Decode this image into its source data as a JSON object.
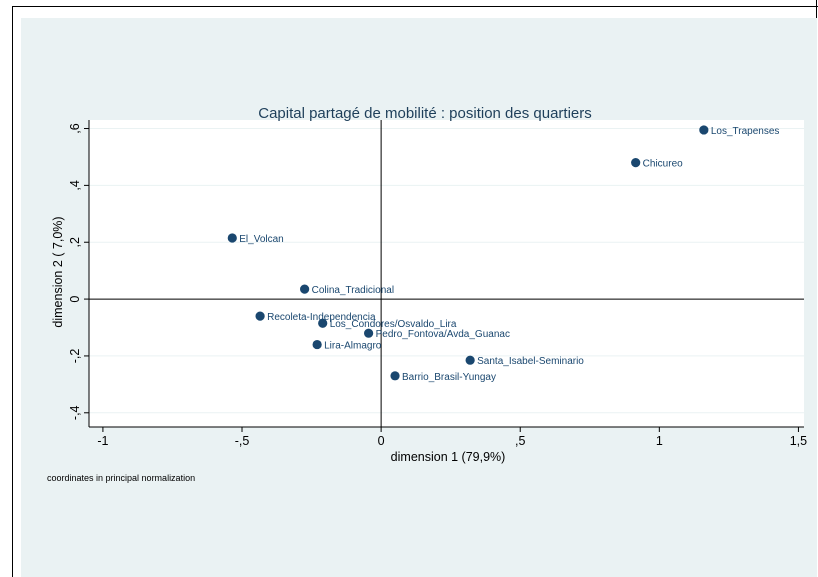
{
  "chart_data": {
    "type": "scatter",
    "title": "Capital partagé de mobilité : position des quartiers",
    "xlabel": "dimension 1 (79,9%)",
    "ylabel": "dimension 2 ( 7,0%)",
    "note": "coordinates in principal normalization",
    "xlim": [
      -1.05,
      1.52
    ],
    "ylim": [
      -0.45,
      0.63
    ],
    "x_ticks": [
      {
        "value": -1,
        "label": "-1"
      },
      {
        "value": -0.5,
        "label": "-,5"
      },
      {
        "value": 0,
        "label": "0"
      },
      {
        "value": 0.5,
        "label": ",5"
      },
      {
        "value": 1,
        "label": "1"
      },
      {
        "value": 1.5,
        "label": "1,5"
      }
    ],
    "y_ticks": [
      {
        "value": -0.4,
        "label": "-,4"
      },
      {
        "value": -0.2,
        "label": "-,2"
      },
      {
        "value": 0,
        "label": "0"
      },
      {
        "value": 0.2,
        "label": ",2"
      },
      {
        "value": 0.4,
        "label": ",4"
      },
      {
        "value": 0.6,
        "label": ",6"
      }
    ],
    "grid": true,
    "reference_lines": {
      "x": 0,
      "y": 0
    },
    "point_color": "#1a476f",
    "label_color": "#1a476f",
    "points": [
      {
        "label": "Los_Trapenses",
        "x": 1.16,
        "y": 0.595
      },
      {
        "label": "Chicureo",
        "x": 0.915,
        "y": 0.48
      },
      {
        "label": "El_Volcan",
        "x": -0.535,
        "y": 0.215
      },
      {
        "label": "Colina_Tradicional",
        "x": -0.275,
        "y": 0.035
      },
      {
        "label": "Recoleta-Independencia",
        "x": -0.435,
        "y": -0.06
      },
      {
        "label": "Los_Condores/Osvaldo_Lira",
        "x": -0.21,
        "y": -0.085
      },
      {
        "label": "Pedro_Fontova/Avda_Guanac",
        "x": -0.045,
        "y": -0.12
      },
      {
        "label": "Lira-Almagro",
        "x": -0.23,
        "y": -0.16
      },
      {
        "label": "Santa_Isabel-Seminario",
        "x": 0.32,
        "y": -0.215
      },
      {
        "label": "Barrio_Brasil-Yungay",
        "x": 0.05,
        "y": -0.27
      }
    ]
  }
}
